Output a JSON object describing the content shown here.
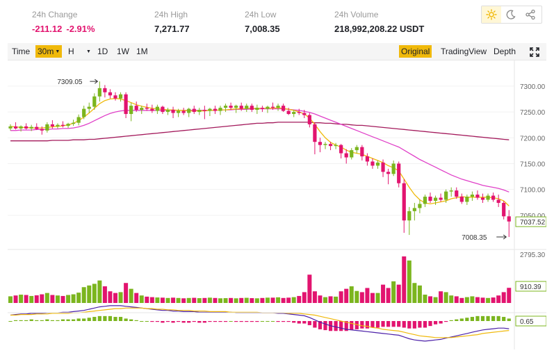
{
  "stats": {
    "change": {
      "label": "24h Change",
      "value": "-211.12",
      "percent": "-2.91%"
    },
    "high": {
      "label": "24h High",
      "value": "7,271.77"
    },
    "low": {
      "label": "24h Low",
      "value": "7,008.35"
    },
    "volume": {
      "label": "24h Volume",
      "value": "218,992,208.22 USDT"
    }
  },
  "icons": [
    "sun-icon",
    "moon-icon",
    "share-icon"
  ],
  "toolbar": {
    "time_label": "Time",
    "interval_label": "30m",
    "hour_label": "H",
    "d1_label": "1D",
    "w1_label": "1W",
    "m1_label": "1M",
    "original_label": "Original",
    "tradingview_label": "TradingView",
    "depth_label": "Depth"
  },
  "colors": {
    "up": "#7bb51e",
    "down": "#e2146f",
    "accent": "#f0b90b",
    "ma_fast": "#f0b90b",
    "ma_mid": "#e040c8",
    "ma_slow": "#a3195b"
  },
  "price_axis": {
    "ticks": [
      "7300.00",
      "7250.00",
      "7200.00",
      "7150.00",
      "7100.00",
      "7050.00"
    ],
    "current_price": "7037.52"
  },
  "annotations": {
    "high_marker": "7309.05",
    "low_marker": "7008.35"
  },
  "volume_axis": {
    "max_label": "2795.30",
    "current_volume": "910.39"
  },
  "macd_axis": {
    "current_value": "0.65"
  },
  "chart_data": {
    "type": "candlestick",
    "ylim": [
      7000,
      7320
    ],
    "candles": [
      [
        7218,
        7226,
        7214,
        7222
      ],
      [
        7222,
        7230,
        7216,
        7218
      ],
      [
        7218,
        7224,
        7212,
        7222
      ],
      [
        7222,
        7228,
        7216,
        7218
      ],
      [
        7218,
        7225,
        7213,
        7221
      ],
      [
        7221,
        7228,
        7215,
        7217
      ],
      [
        7217,
        7222,
        7206,
        7214
      ],
      [
        7214,
        7230,
        7210,
        7226
      ],
      [
        7226,
        7234,
        7218,
        7222
      ],
      [
        7222,
        7228,
        7218,
        7225
      ],
      [
        7225,
        7232,
        7220,
        7223
      ],
      [
        7223,
        7229,
        7219,
        7227
      ],
      [
        7227,
        7235,
        7223,
        7229
      ],
      [
        7229,
        7245,
        7224,
        7240
      ],
      [
        7240,
        7262,
        7236,
        7256
      ],
      [
        7256,
        7268,
        7248,
        7260
      ],
      [
        7260,
        7286,
        7254,
        7280
      ],
      [
        7280,
        7309,
        7270,
        7296
      ],
      [
        7296,
        7302,
        7278,
        7288
      ],
      [
        7288,
        7294,
        7276,
        7282
      ],
      [
        7282,
        7288,
        7272,
        7276
      ],
      [
        7276,
        7288,
        7270,
        7284
      ],
      [
        7284,
        7288,
        7238,
        7246
      ],
      [
        7246,
        7268,
        7232,
        7262
      ],
      [
        7262,
        7270,
        7250,
        7254
      ],
      [
        7254,
        7262,
        7246,
        7258
      ],
      [
        7258,
        7266,
        7252,
        7256
      ],
      [
        7256,
        7264,
        7248,
        7252
      ],
      [
        7252,
        7264,
        7246,
        7260
      ],
      [
        7260,
        7262,
        7246,
        7250
      ],
      [
        7250,
        7258,
        7244,
        7254
      ],
      [
        7254,
        7260,
        7238,
        7248
      ],
      [
        7248,
        7256,
        7240,
        7252
      ],
      [
        7252,
        7258,
        7244,
        7248
      ],
      [
        7248,
        7258,
        7240,
        7256
      ],
      [
        7256,
        7262,
        7246,
        7250
      ],
      [
        7250,
        7258,
        7244,
        7254
      ],
      [
        7254,
        7262,
        7236,
        7252
      ],
      [
        7252,
        7258,
        7242,
        7256
      ],
      [
        7256,
        7262,
        7246,
        7252
      ],
      [
        7252,
        7262,
        7244,
        7258
      ],
      [
        7258,
        7266,
        7250,
        7262
      ],
      [
        7262,
        7268,
        7254,
        7258
      ],
      [
        7258,
        7264,
        7248,
        7262
      ],
      [
        7262,
        7268,
        7252,
        7256
      ],
      [
        7256,
        7266,
        7250,
        7262
      ],
      [
        7262,
        7266,
        7250,
        7254
      ],
      [
        7254,
        7264,
        7246,
        7258
      ],
      [
        7258,
        7262,
        7250,
        7256
      ],
      [
        7256,
        7262,
        7248,
        7260
      ],
      [
        7260,
        7268,
        7254,
        7258
      ],
      [
        7258,
        7266,
        7252,
        7262
      ],
      [
        7262,
        7266,
        7250,
        7252
      ],
      [
        7252,
        7258,
        7244,
        7246
      ],
      [
        7246,
        7254,
        7240,
        7250
      ],
      [
        7250,
        7256,
        7244,
        7248
      ],
      [
        7248,
        7254,
        7238,
        7244
      ],
      [
        7244,
        7248,
        7220,
        7226
      ],
      [
        7226,
        7230,
        7168,
        7192
      ],
      [
        7192,
        7200,
        7172,
        7186
      ],
      [
        7186,
        7192,
        7178,
        7188
      ],
      [
        7188,
        7192,
        7176,
        7184
      ],
      [
        7184,
        7190,
        7178,
        7186
      ],
      [
        7186,
        7188,
        7160,
        7170
      ],
      [
        7170,
        7178,
        7150,
        7162
      ],
      [
        7162,
        7180,
        7158,
        7176
      ],
      [
        7176,
        7186,
        7170,
        7182
      ],
      [
        7182,
        7186,
        7156,
        7164
      ],
      [
        7164,
        7170,
        7146,
        7154
      ],
      [
        7154,
        7160,
        7140,
        7146
      ],
      [
        7146,
        7156,
        7140,
        7152
      ],
      [
        7152,
        7158,
        7124,
        7134
      ],
      [
        7134,
        7140,
        7110,
        7130
      ],
      [
        7130,
        7156,
        7126,
        7150
      ],
      [
        7150,
        7154,
        7104,
        7112
      ],
      [
        7112,
        7120,
        7016,
        7040
      ],
      [
        7040,
        7066,
        7012,
        7058
      ],
      [
        7058,
        7074,
        7040,
        7064
      ],
      [
        7064,
        7080,
        7054,
        7072
      ],
      [
        7072,
        7090,
        7066,
        7086
      ],
      [
        7086,
        7094,
        7074,
        7078
      ],
      [
        7078,
        7088,
        7070,
        7084
      ],
      [
        7084,
        7092,
        7076,
        7080
      ],
      [
        7080,
        7100,
        7074,
        7096
      ],
      [
        7096,
        7104,
        7086,
        7098
      ],
      [
        7098,
        7104,
        7082,
        7086
      ],
      [
        7086,
        7092,
        7072,
        7076
      ],
      [
        7076,
        7090,
        7070,
        7086
      ],
      [
        7086,
        7096,
        7078,
        7090
      ],
      [
        7090,
        7098,
        7080,
        7084
      ],
      [
        7084,
        7092,
        7074,
        7080
      ],
      [
        7080,
        7092,
        7076,
        7088
      ],
      [
        7088,
        7094,
        7076,
        7080
      ],
      [
        7080,
        7090,
        7066,
        7074
      ],
      [
        7074,
        7078,
        7042,
        7048
      ],
      [
        7048,
        7060,
        7008,
        7038
      ]
    ],
    "ma_fast": [
      7222,
      7221,
      7220,
      7220,
      7219,
      7219,
      7219,
      7220,
      7221,
      7222,
      7223,
      7225,
      7228,
      7233,
      7240,
      7248,
      7257,
      7266,
      7272,
      7275,
      7276,
      7275,
      7272,
      7268,
      7264,
      7261,
      7259,
      7257,
      7256,
      7255,
      7254,
      7254,
      7253,
      7253,
      7252,
      7252,
      7252,
      7252,
      7253,
      7253,
      7254,
      7254,
      7255,
      7256,
      7256,
      7257,
      7257,
      7257,
      7257,
      7257,
      7257,
      7258,
      7257,
      7255,
      7253,
      7250,
      7246,
      7238,
      7226,
      7212,
      7200,
      7191,
      7186,
      7182,
      7176,
      7172,
      7170,
      7168,
      7164,
      7160,
      7156,
      7152,
      7146,
      7142,
      7136,
      7120,
      7104,
      7090,
      7080,
      7074,
      7072,
      7074,
      7076,
      7078,
      7082,
      7084,
      7086,
      7085,
      7085,
      7085,
      7085,
      7085,
      7084,
      7082,
      7078,
      7068
    ],
    "ma_mid": [
      7214,
      7214,
      7215,
      7215,
      7215,
      7216,
      7216,
      7216,
      7217,
      7217,
      7218,
      7218,
      7219,
      7221,
      7224,
      7228,
      7233,
      7238,
      7243,
      7247,
      7250,
      7252,
      7253,
      7253,
      7253,
      7253,
      7253,
      7253,
      7253,
      7253,
      7253,
      7253,
      7253,
      7253,
      7253,
      7253,
      7253,
      7253,
      7253,
      7253,
      7254,
      7254,
      7254,
      7255,
      7255,
      7255,
      7256,
      7256,
      7256,
      7256,
      7256,
      7256,
      7256,
      7255,
      7254,
      7253,
      7251,
      7249,
      7246,
      7242,
      7238,
      7234,
      7230,
      7226,
      7222,
      7218,
      7214,
      7210,
      7206,
      7202,
      7198,
      7194,
      7190,
      7186,
      7182,
      7176,
      7170,
      7164,
      7158,
      7153,
      7148,
      7143,
      7138,
      7133,
      7128,
      7124,
      7120,
      7117,
      7114,
      7111,
      7108,
      7106,
      7104,
      7102,
      7099,
      7095
    ],
    "ma_slow": [
      7194,
      7194,
      7194,
      7194,
      7194,
      7194,
      7194,
      7194,
      7195,
      7195,
      7195,
      7195,
      7196,
      7196,
      7196,
      7197,
      7197,
      7198,
      7199,
      7200,
      7201,
      7202,
      7203,
      7204,
      7205,
      7206,
      7207,
      7208,
      7209,
      7210,
      7211,
      7212,
      7213,
      7214,
      7215,
      7216,
      7217,
      7218,
      7219,
      7220,
      7221,
      7222,
      7223,
      7224,
      7225,
      7226,
      7227,
      7228,
      7228,
      7229,
      7229,
      7230,
      7230,
      7230,
      7230,
      7230,
      7230,
      7230,
      7229,
      7229,
      7228,
      7228,
      7227,
      7226,
      7226,
      7225,
      7224,
      7224,
      7223,
      7222,
      7221,
      7220,
      7219,
      7218,
      7217,
      7216,
      7215,
      7214,
      7213,
      7212,
      7211,
      7210,
      7209,
      7208,
      7207,
      7206,
      7205,
      7204,
      7203,
      7202,
      7201,
      7200,
      7199,
      7198,
      7197,
      7196
    ],
    "volume": [
      400,
      450,
      500,
      480,
      420,
      460,
      520,
      600,
      480,
      450,
      420,
      480,
      520,
      620,
      950,
      1050,
      1150,
      1350,
      1000,
      700,
      600,
      650,
      1200,
      850,
      600,
      450,
      380,
      350,
      330,
      320,
      300,
      320,
      300,
      280,
      300,
      310,
      290,
      300,
      320,
      300,
      280,
      290,
      300,
      280,
      300,
      310,
      290,
      280,
      300,
      320,
      320,
      340,
      300,
      320,
      350,
      420,
      650,
      1700,
      700,
      450,
      350,
      400,
      380,
      700,
      850,
      1000,
      720,
      650,
      900,
      600,
      600,
      1100,
      900,
      1300,
      1100,
      2795,
      2550,
      1200,
      1050,
      500,
      400,
      350,
      700,
      650,
      450,
      400,
      300,
      350,
      400,
      350,
      320,
      300,
      330,
      450,
      650,
      910
    ],
    "volume_max": 2795.3,
    "macd_line": [
      10,
      11,
      12,
      12,
      13,
      13,
      13,
      14,
      14,
      14,
      15,
      15,
      16,
      17,
      18,
      20,
      22,
      24,
      25,
      26,
      26,
      26,
      25,
      24,
      23,
      22,
      21,
      20,
      19,
      18,
      18,
      17,
      17,
      16,
      16,
      16,
      15,
      15,
      15,
      15,
      15,
      15,
      15,
      14,
      14,
      14,
      14,
      14,
      14,
      14,
      14,
      13,
      13,
      12,
      11,
      10,
      9,
      6,
      2,
      -2,
      -5,
      -8,
      -10,
      -12,
      -14,
      -15,
      -16,
      -17,
      -18,
      -19,
      -20,
      -21,
      -22,
      -23,
      -24,
      -27,
      -30,
      -32,
      -33,
      -34,
      -33,
      -32,
      -31,
      -29,
      -27,
      -25,
      -23,
      -21,
      -19,
      -17,
      -15,
      -14,
      -13,
      -12,
      -12,
      -13
    ],
    "signal_line": [
      10,
      10,
      11,
      11,
      11,
      12,
      12,
      12,
      13,
      13,
      13,
      13,
      14,
      14,
      15,
      16,
      17,
      18,
      19,
      20,
      21,
      21,
      22,
      22,
      22,
      22,
      21,
      21,
      20,
      20,
      19,
      19,
      18,
      18,
      18,
      17,
      17,
      17,
      16,
      16,
      16,
      16,
      15,
      15,
      15,
      15,
      15,
      15,
      14,
      14,
      14,
      14,
      14,
      13,
      13,
      13,
      12,
      11,
      10,
      8,
      6,
      4,
      2,
      0,
      -2,
      -4,
      -6,
      -8,
      -9,
      -11,
      -12,
      -14,
      -15,
      -16,
      -17,
      -19,
      -21,
      -23,
      -25,
      -26,
      -27,
      -28,
      -28,
      -28,
      -28,
      -27,
      -26,
      -25,
      -24,
      -23,
      -21,
      -20,
      -19,
      -18,
      -17,
      -16
    ]
  }
}
